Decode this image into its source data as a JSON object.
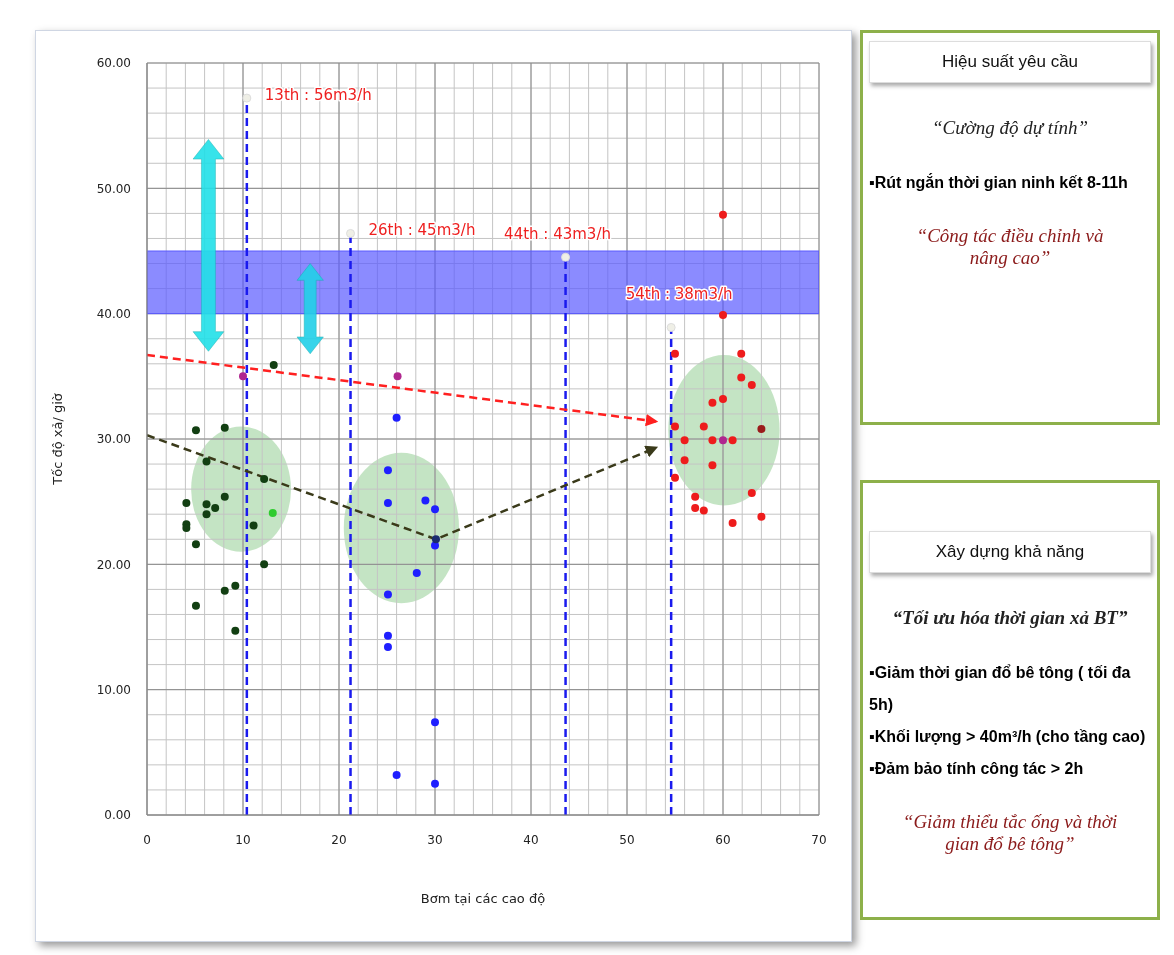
{
  "chart_data": [
    {
      "type": "scatter",
      "xlabel": "Bơm tại các cao độ",
      "ylabel": "Tốc độ xả/ giờ",
      "xlim": [
        0,
        70
      ],
      "ylim": [
        0,
        60
      ],
      "xticks": [
        0,
        {
          "value": 2,
          "label": null
        },
        {
          "value": 4,
          "label": null
        },
        {
          "value": 6,
          "label": null
        },
        {
          "value": 8,
          "label": null
        },
        10,
        {
          "value": 12,
          "label": null
        },
        {
          "value": 14,
          "label": null
        },
        {
          "value": 16,
          "label": null
        },
        {
          "value": 18,
          "label": null
        },
        20,
        {
          "value": 22,
          "label": null
        },
        {
          "value": 24,
          "label": null
        },
        {
          "value": 26,
          "label": null
        },
        {
          "value": 28,
          "label": null
        },
        30,
        {
          "value": 32,
          "label": null
        },
        {
          "value": 34,
          "label": null
        },
        {
          "value": 36,
          "label": null
        },
        {
          "value": 38,
          "label": null
        },
        40,
        {
          "value": 42,
          "label": null
        },
        {
          "value": 44,
          "label": null
        },
        {
          "value": 46,
          "label": null
        },
        {
          "value": 48,
          "label": null
        },
        50,
        {
          "value": 52,
          "label": null
        },
        {
          "value": 54,
          "label": null
        },
        {
          "value": 56,
          "label": null
        },
        {
          "value": 58,
          "label": null
        },
        60,
        {
          "value": 62,
          "label": null
        },
        {
          "value": 64,
          "label": null
        },
        {
          "value": 66,
          "label": null
        },
        {
          "value": 68,
          "label": null
        },
        70
      ],
      "yticks": [
        {
          "value": 0,
          "label": "0.00"
        },
        {
          "value": 2,
          "label": null
        },
        {
          "value": 4,
          "label": null
        },
        {
          "value": 6,
          "label": null
        },
        {
          "value": 8,
          "label": null
        },
        {
          "value": 10,
          "label": "10.00"
        },
        {
          "value": 12,
          "label": null
        },
        {
          "value": 14,
          "label": null
        },
        {
          "value": 16,
          "label": null
        },
        {
          "value": 18,
          "label": null
        },
        {
          "value": 20,
          "label": "20.00"
        },
        {
          "value": 22,
          "label": null
        },
        {
          "value": 24,
          "label": null
        },
        {
          "value": 26,
          "label": null
        },
        {
          "value": 28,
          "label": null
        },
        {
          "value": 30,
          "label": "30.00"
        },
        {
          "value": 32,
          "label": null
        },
        {
          "value": 34,
          "label": null
        },
        {
          "value": 36,
          "label": null
        },
        {
          "value": 38,
          "label": null
        },
        {
          "value": 40,
          "label": "40.00"
        },
        {
          "value": 42,
          "label": null
        },
        {
          "value": 44,
          "label": null
        },
        {
          "value": 46,
          "label": null
        },
        {
          "value": 48,
          "label": null
        },
        {
          "value": 50,
          "label": "50.00"
        },
        {
          "value": 52,
          "label": null
        },
        {
          "value": 54,
          "label": null
        },
        {
          "value": 56,
          "label": null
        },
        {
          "value": 58,
          "label": null
        },
        {
          "value": 60,
          "label": "60.00"
        }
      ],
      "grid": true,
      "marker": "circle",
      "bands": [
        {
          "axis": "y",
          "from": 40,
          "to": 45,
          "color": "#5a5aff"
        }
      ],
      "series": [
        {
          "color": "#123f12",
          "x": [
            13.2,
            5.1,
            8.1,
            6.2,
            12.2,
            8.1,
            4.1,
            6.2,
            7.1,
            6.2,
            11.1,
            4.1,
            4.1,
            5.1,
            12.2,
            9.2,
            8.1,
            5.1,
            9.2
          ],
          "values": [
            35.9,
            30.7,
            30.9,
            28.2,
            26.8,
            25.4,
            24.9,
            24.8,
            24.5,
            24.0,
            23.1,
            23.2,
            22.9,
            21.6,
            20.0,
            18.3,
            17.9,
            16.7,
            14.7
          ]
        },
        {
          "color": "#2ecc2e",
          "x": [
            13.1
          ],
          "values": [
            24.1
          ]
        },
        {
          "color": "#b0278f",
          "x": [
            10.0,
            26.1,
            60.0
          ],
          "values": [
            35.0,
            35.0,
            29.9
          ]
        },
        {
          "color": "#1f1fff",
          "x": [
            26.0,
            25.1,
            25.1,
            29.0,
            30.0,
            30.0,
            28.1,
            25.1,
            25.1,
            25.1,
            30.0,
            26.0,
            30.0
          ],
          "values": [
            31.7,
            27.5,
            24.9,
            25.1,
            24.4,
            21.5,
            19.3,
            17.6,
            14.3,
            13.4,
            7.4,
            3.2,
            2.5
          ]
        },
        {
          "color": "#1b2b70",
          "x": [
            30.1
          ],
          "values": [
            22.0
          ]
        },
        {
          "color": "#ee1c1c",
          "x": [
            60.0,
            60.0,
            55.0,
            61.9,
            61.9,
            63.0,
            58.9,
            60.0,
            55.0,
            58.0,
            56.0,
            58.9,
            61.0,
            56.0,
            58.9,
            55.0,
            57.1,
            63.0,
            57.1,
            58.0,
            61.0,
            64.0
          ],
          "values": [
            47.9,
            39.9,
            36.8,
            36.8,
            34.9,
            34.3,
            32.9,
            33.2,
            31.0,
            31.0,
            29.9,
            29.9,
            29.9,
            28.3,
            27.9,
            26.9,
            25.4,
            25.7,
            24.5,
            24.3,
            23.3,
            23.8
          ]
        },
        {
          "color": "#9b1b1b",
          "x": [
            64.0
          ],
          "values": [
            30.8
          ]
        },
        {
          "color": "#efefe6",
          "x": [
            10.4,
            21.2,
            43.6,
            54.6
          ],
          "values": [
            57.2,
            46.4,
            44.5,
            38.9
          ]
        },
        {
          "type": "line",
          "color": "#1a1aee",
          "line_style": "dashed",
          "marker": "none",
          "x": [
            10.4,
            10.4
          ],
          "values": [
            0,
            57.2
          ]
        },
        {
          "type": "line",
          "color": "#1a1aee",
          "line_style": "dashed",
          "marker": "none",
          "x": [
            21.2,
            21.2
          ],
          "values": [
            0,
            46.4
          ]
        },
        {
          "type": "line",
          "color": "#1a1aee",
          "line_style": "dashed",
          "marker": "none",
          "x": [
            43.6,
            43.6
          ],
          "values": [
            0,
            44.5
          ]
        },
        {
          "type": "line",
          "color": "#1a1aee",
          "line_style": "dashed",
          "marker": "none",
          "x": [
            54.6,
            54.6
          ],
          "values": [
            0,
            38.9
          ]
        },
        {
          "type": "line",
          "color": "#ff2020",
          "line_style": "dashed",
          "marker": "none",
          "x": [
            0,
            53.0
          ],
          "values": [
            36.7,
            31.4
          ]
        },
        {
          "type": "line",
          "color": "#3a3a1a",
          "line_style": "dashed",
          "marker": "none",
          "x": [
            0,
            30.1,
            53.0
          ],
          "values": [
            30.3,
            22.0,
            29.3
          ]
        }
      ],
      "annotations": [
        {
          "text": "13th : 56m3/h",
          "x": 10.4,
          "y": 57.2
        },
        {
          "text": "26th : 45m3/h",
          "x": 21.2,
          "y": 46.4
        },
        {
          "text": "44th : 43m3/h",
          "x": 43.6,
          "y": 44.5
        },
        {
          "text": "54th : 38m3/h",
          "x": 54.6,
          "y": 38.9
        }
      ]
    },
    {
      "type": "other",
      "title": "Hiệu suất yêu cầu",
      "annotations": [
        "“Cường độ dự tính”",
        "▪Rút ngắn thời gian ninh kết 8-11h",
        "“Công tác điều chỉnh và nâng cao”"
      ]
    },
    {
      "type": "other",
      "title": "Xây dựng khả năng",
      "annotations": [
        "“Tối ưu hóa thời gian xả BT”",
        "▪Giảm thời gian đổ bê tông ( tối đa 5h)",
        "▪Khối lượng > 40m³/h (cho tầng cao)",
        "▪Đảm bảo tính công tác > 2h",
        "“Giảm thiểu tắc ống và thời gian đổ bê tông”"
      ]
    }
  ]
}
